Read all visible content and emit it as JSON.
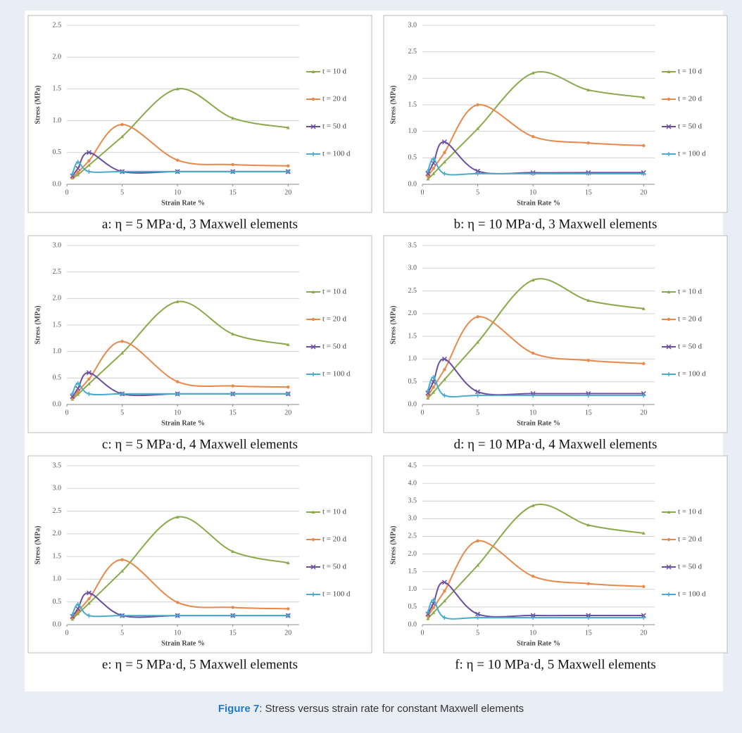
{
  "caption": {
    "label": "Figure 7",
    "text": ": Stress versus strain rate for constant Maxwell elements"
  },
  "chart_data": [
    {
      "type": "line",
      "title": "a: η = 5 MPa·d, 3 Maxwell elements",
      "x_label": "Strain Rate %",
      "y_label": "Stress (MPa)",
      "x": [
        0.5,
        1,
        2,
        5,
        10,
        15,
        20
      ],
      "xlim": [
        0,
        21
      ],
      "xticks": [
        0,
        5,
        10,
        15,
        20
      ],
      "ylim": [
        0,
        2.5
      ],
      "yticks": [
        {
          "value": 0,
          "label": "0.0"
        },
        0.5,
        {
          "value": 1,
          "label": "1.0"
        },
        1.5,
        {
          "value": 2,
          "label": "2.0"
        },
        2.5
      ],
      "grid": true,
      "series": [
        {
          "name": "t = 10 d",
          "color": "#8aaa4a",
          "values": [
            0.1,
            0.15,
            0.3,
            0.75,
            1.5,
            1.04,
            0.89
          ]
        },
        {
          "name": "t = 20 d",
          "color": "#e8884a",
          "values": [
            0.1,
            0.19,
            0.37,
            0.94,
            0.38,
            0.31,
            0.29
          ]
        },
        {
          "name": "t = 50 d",
          "color": "#6a4fa0",
          "values": [
            0.13,
            0.25,
            0.5,
            0.2,
            0.2,
            0.2,
            0.2
          ]
        },
        {
          "name": "t = 100 d",
          "color": "#4aaccc",
          "values": [
            0.16,
            0.35,
            0.2,
            0.2,
            0.2,
            0.2,
            0.2
          ]
        }
      ]
    },
    {
      "type": "line",
      "title": "b: η = 10 MPa·d, 3 Maxwell elements",
      "x_label": "Strain Rate %",
      "y_label": "Stress (MPa)",
      "x": [
        0.5,
        1,
        2,
        5,
        10,
        15,
        20
      ],
      "xlim": [
        0,
        21
      ],
      "xticks": [
        0,
        5,
        10,
        15,
        20
      ],
      "ylim": [
        0,
        3
      ],
      "yticks": [
        {
          "value": 0,
          "label": "0.0"
        },
        0.5,
        {
          "value": 1,
          "label": "1.0"
        },
        1.5,
        {
          "value": 2,
          "label": "2.0"
        },
        2.5,
        {
          "value": 3,
          "label": "3.0"
        }
      ],
      "grid": true,
      "series": [
        {
          "name": "t = 10 d",
          "color": "#8aaa4a",
          "values": [
            0.1,
            0.2,
            0.42,
            1.05,
            2.1,
            1.78,
            1.64
          ]
        },
        {
          "name": "t = 20 d",
          "color": "#e8884a",
          "values": [
            0.15,
            0.3,
            0.6,
            1.5,
            0.9,
            0.78,
            0.73
          ]
        },
        {
          "name": "t = 50 d",
          "color": "#6a4fa0",
          "values": [
            0.2,
            0.4,
            0.8,
            0.25,
            0.22,
            0.22,
            0.22
          ]
        },
        {
          "name": "t = 100 d",
          "color": "#4aaccc",
          "values": [
            0.25,
            0.48,
            0.2,
            0.2,
            0.2,
            0.2,
            0.2
          ]
        }
      ]
    },
    {
      "type": "line",
      "title": "c: η = 5 MPa·d, 4 Maxwell elements",
      "x_label": "Strain Rate %",
      "y_label": "Stress (MPa)",
      "x": [
        0.5,
        1,
        2,
        5,
        10,
        15,
        20
      ],
      "xlim": [
        0,
        21
      ],
      "xticks": [
        0,
        5,
        10,
        15,
        20
      ],
      "ylim": [
        0,
        3
      ],
      "yticks": [
        {
          "value": 0,
          "label": "0.0"
        },
        0.5,
        {
          "value": 1,
          "label": "1.0"
        },
        1.5,
        {
          "value": 2,
          "label": "2.0"
        },
        2.5,
        {
          "value": 3,
          "label": "3.0"
        }
      ],
      "grid": true,
      "series": [
        {
          "name": "t = 10 d",
          "color": "#8aaa4a",
          "values": [
            0.1,
            0.19,
            0.39,
            0.97,
            1.94,
            1.33,
            1.13
          ]
        },
        {
          "name": "t = 20 d",
          "color": "#e8884a",
          "values": [
            0.12,
            0.24,
            0.48,
            1.19,
            0.43,
            0.35,
            0.33
          ]
        },
        {
          "name": "t = 50 d",
          "color": "#6a4fa0",
          "values": [
            0.15,
            0.3,
            0.6,
            0.2,
            0.2,
            0.2,
            0.2
          ]
        },
        {
          "name": "t = 100 d",
          "color": "#4aaccc",
          "values": [
            0.2,
            0.4,
            0.2,
            0.2,
            0.2,
            0.2,
            0.2
          ]
        }
      ]
    },
    {
      "type": "line",
      "title": "d: η = 10 MPa·d, 4 Maxwell elements",
      "x_label": "Strain Rate %",
      "y_label": "Stress (MPa)",
      "x": [
        0.5,
        1,
        2,
        5,
        10,
        15,
        20
      ],
      "xlim": [
        0,
        21
      ],
      "xticks": [
        0,
        5,
        10,
        15,
        20
      ],
      "ylim": [
        0,
        3.5
      ],
      "yticks": [
        {
          "value": 0,
          "label": "0.0"
        },
        0.5,
        {
          "value": 1,
          "label": "1.0"
        },
        1.5,
        {
          "value": 2,
          "label": "2.0"
        },
        2.5,
        {
          "value": 3,
          "label": "3.0"
        },
        3.5
      ],
      "grid": true,
      "series": [
        {
          "name": "t = 10 d",
          "color": "#8aaa4a",
          "values": [
            0.14,
            0.27,
            0.55,
            1.37,
            2.74,
            2.29,
            2.11
          ]
        },
        {
          "name": "t = 20 d",
          "color": "#e8884a",
          "values": [
            0.19,
            0.38,
            0.77,
            1.93,
            1.13,
            0.97,
            0.9
          ]
        },
        {
          "name": "t = 50 d",
          "color": "#6a4fa0",
          "values": [
            0.25,
            0.5,
            1.0,
            0.28,
            0.24,
            0.24,
            0.24
          ]
        },
        {
          "name": "t = 100 d",
          "color": "#4aaccc",
          "values": [
            0.3,
            0.6,
            0.2,
            0.2,
            0.2,
            0.2,
            0.2
          ]
        }
      ]
    },
    {
      "type": "line",
      "title": "e: η = 5 MPa·d, 5 Maxwell elements",
      "x_label": "Strain Rate %",
      "y_label": "Stress (MPa)",
      "x": [
        0.5,
        1,
        2,
        5,
        10,
        15,
        20
      ],
      "xlim": [
        0,
        21
      ],
      "xticks": [
        0,
        5,
        10,
        15,
        20
      ],
      "ylim": [
        0,
        3.5
      ],
      "yticks": [
        {
          "value": 0,
          "label": "0.0"
        },
        0.5,
        {
          "value": 1,
          "label": "1.0"
        },
        1.5,
        {
          "value": 2,
          "label": "2.0"
        },
        2.5,
        {
          "value": 3,
          "label": "3.0"
        },
        3.5
      ],
      "grid": true,
      "series": [
        {
          "name": "t = 10 d",
          "color": "#8aaa4a",
          "values": [
            0.12,
            0.24,
            0.47,
            1.18,
            2.37,
            1.61,
            1.36
          ]
        },
        {
          "name": "t = 20 d",
          "color": "#e8884a",
          "values": [
            0.14,
            0.29,
            0.57,
            1.43,
            0.49,
            0.38,
            0.35
          ]
        },
        {
          "name": "t = 50 d",
          "color": "#6a4fa0",
          "values": [
            0.18,
            0.35,
            0.7,
            0.2,
            0.2,
            0.2,
            0.2
          ]
        },
        {
          "name": "t = 100 d",
          "color": "#4aaccc",
          "values": [
            0.22,
            0.45,
            0.2,
            0.2,
            0.2,
            0.2,
            0.2
          ]
        }
      ]
    },
    {
      "type": "line",
      "title": "f: η = 10 MPa·d, 5 Maxwell elements",
      "x_label": "Strain Rate %",
      "y_label": "Stress (MPa)",
      "x": [
        0.5,
        1,
        2,
        5,
        10,
        15,
        20
      ],
      "xlim": [
        0,
        21
      ],
      "xticks": [
        0,
        5,
        10,
        15,
        20
      ],
      "ylim": [
        0,
        4.5
      ],
      "yticks": [
        {
          "value": 0,
          "label": "0.0"
        },
        0.5,
        {
          "value": 1,
          "label": "1.0"
        },
        1.5,
        {
          "value": 2,
          "label": "2.0"
        },
        2.5,
        {
          "value": 3,
          "label": "3.0"
        },
        3.5,
        {
          "value": 4,
          "label": "4.0"
        },
        4.5
      ],
      "grid": true,
      "series": [
        {
          "name": "t = 10 d",
          "color": "#8aaa4a",
          "values": [
            0.17,
            0.34,
            0.67,
            1.68,
            3.37,
            2.82,
            2.59
          ]
        },
        {
          "name": "t = 20 d",
          "color": "#e8884a",
          "values": [
            0.24,
            0.48,
            0.95,
            2.37,
            1.37,
            1.16,
            1.08
          ]
        },
        {
          "name": "t = 50 d",
          "color": "#6a4fa0",
          "values": [
            0.3,
            0.6,
            1.2,
            0.3,
            0.26,
            0.26,
            0.26
          ]
        },
        {
          "name": "t = 100 d",
          "color": "#4aaccc",
          "values": [
            0.35,
            0.7,
            0.2,
            0.2,
            0.2,
            0.2,
            0.2
          ]
        }
      ]
    }
  ]
}
